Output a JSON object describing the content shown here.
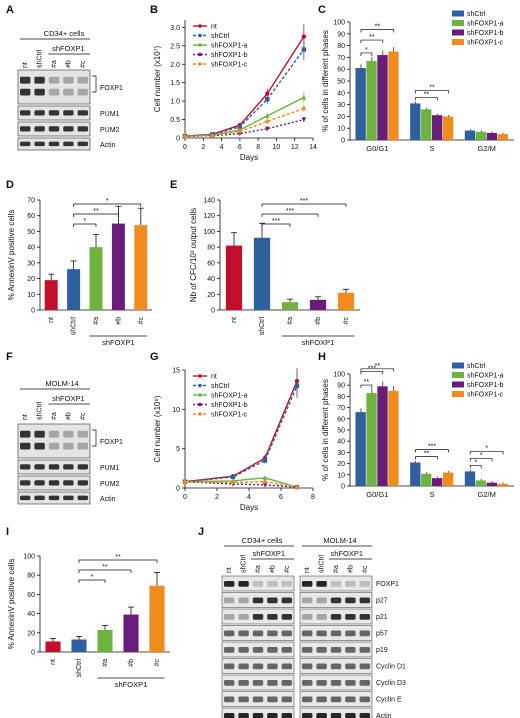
{
  "colors": {
    "nt": "#c0102c",
    "shCtrl": "#2e5f9e",
    "a": "#6db33f",
    "b": "#6b1c7a",
    "c": "#f08c1e"
  },
  "panel_labels": [
    "A",
    "B",
    "C",
    "D",
    "E",
    "F",
    "G",
    "H",
    "I",
    "J"
  ],
  "blots": {
    "A": {
      "header": "CD34+ cells",
      "group": "shFOXP1",
      "lanes": [
        "nt",
        "shCtrl",
        "#a",
        "#b",
        "#c"
      ],
      "rows": [
        "FOXP1",
        "PUM1",
        "PUM2",
        "Actin"
      ]
    },
    "F": {
      "header": "MOLM-14",
      "group": "shFOXP1",
      "lanes": [
        "nt",
        "shCtrl",
        "#a",
        "#b",
        "#c"
      ],
      "rows": [
        "FOXP1",
        "PUM1",
        "PUM2",
        "Actin"
      ]
    },
    "J": {
      "headers": [
        "CD34+ cells",
        "MOLM-14"
      ],
      "group": "shFOXP1",
      "lanes": [
        "nt",
        "shCtrl",
        "#a",
        "#b",
        "#c"
      ],
      "rows": [
        "FOXP1",
        "p27",
        "p21",
        "p57",
        "p19",
        "Cyclin D1",
        "Cyclin D3",
        "Cyclin E",
        "Actin"
      ]
    }
  },
  "chart_data": [
    {
      "panel": "B",
      "type": "line",
      "xlabel": "Days",
      "ylabel": "Cell number (x10⁷)",
      "x": [
        0,
        3,
        6,
        9,
        13
      ],
      "xlim": [
        0,
        14
      ],
      "ylim": [
        0,
        3.2
      ],
      "xticks": [
        0,
        2,
        4,
        6,
        8,
        10,
        12,
        14
      ],
      "yticks": [
        0,
        0.5,
        1,
        1.5,
        2,
        2.5,
        3
      ],
      "ytick_labels": [
        "0",
        "0.5",
        "1.0",
        "1.5",
        "2.0",
        "2.5",
        "3.0"
      ],
      "legend": "top-left",
      "series": [
        {
          "name": "nt",
          "values": [
            0.05,
            0.1,
            0.35,
            1.2,
            2.75
          ]
        },
        {
          "name": "shCtrl",
          "values": [
            0.05,
            0.1,
            0.3,
            1.05,
            2.4
          ]
        },
        {
          "name": "shFOXP1-a",
          "values": [
            0.05,
            0.08,
            0.22,
            0.6,
            1.1
          ]
        },
        {
          "name": "shFOXP1-b",
          "values": [
            0.05,
            0.06,
            0.12,
            0.25,
            0.5
          ]
        },
        {
          "name": "shFOXP1-c",
          "values": [
            0.05,
            0.07,
            0.18,
            0.45,
            0.8
          ]
        }
      ]
    },
    {
      "panel": "C",
      "type": "bar",
      "ylabel": "% of cells in different phases",
      "categories": [
        "G0/G1",
        "S",
        "G2/M"
      ],
      "ylim": [
        0,
        100
      ],
      "yticks": [
        0,
        10,
        20,
        30,
        40,
        50,
        60,
        70,
        80,
        90,
        100
      ],
      "legend": "top-right",
      "series": [
        {
          "name": "shCtrl",
          "values": [
            61,
            31,
            8
          ]
        },
        {
          "name": "shFOXP1-a",
          "values": [
            67,
            26,
            7
          ]
        },
        {
          "name": "shFOXP1-b",
          "values": [
            72,
            21,
            6
          ]
        },
        {
          "name": "shFOXP1-c",
          "values": [
            75,
            20,
            5
          ]
        }
      ],
      "significance": [
        "*",
        "**",
        "**",
        "**",
        "**"
      ]
    },
    {
      "panel": "D",
      "type": "bar",
      "ylabel": "% AnnexinV positive cells",
      "categories": [
        "nt",
        "shCtrl",
        "#a",
        "#b",
        "#c"
      ],
      "group_label": "shFOXP1",
      "values": [
        19,
        26,
        40,
        55,
        54
      ],
      "ylim": [
        0,
        70
      ],
      "yticks": [
        0,
        10,
        20,
        30,
        40,
        50,
        60,
        70
      ],
      "significance": [
        "*",
        "**",
        "*"
      ]
    },
    {
      "panel": "E",
      "type": "bar",
      "ylabel": "Nb of CFC/10³ output cells",
      "categories": [
        "nt",
        "shCtrl",
        "#a",
        "#b",
        "#c"
      ],
      "group_label": "shFOXP1",
      "values": [
        82,
        92,
        10,
        13,
        22
      ],
      "ylim": [
        0,
        140
      ],
      "yticks": [
        0,
        20,
        40,
        60,
        80,
        100,
        120,
        140
      ],
      "significance": [
        "***",
        "***",
        "***"
      ]
    },
    {
      "panel": "G",
      "type": "line",
      "xlabel": "Days",
      "ylabel": "Cell number (x10⁶)",
      "x": [
        0,
        3,
        5,
        7
      ],
      "xlim": [
        0,
        8
      ],
      "ylim": [
        0,
        15
      ],
      "xticks": [
        0,
        2,
        4,
        6,
        8
      ],
      "yticks": [
        0,
        5,
        10,
        15
      ],
      "legend": "top-left",
      "series": [
        {
          "name": "nt",
          "values": [
            0.8,
            1.5,
            3.8,
            13.6
          ]
        },
        {
          "name": "shCtrl",
          "values": [
            0.8,
            1.4,
            3.5,
            13.0
          ]
        },
        {
          "name": "shFOXP1-a",
          "values": [
            0.8,
            0.9,
            1.3,
            0.1
          ]
        },
        {
          "name": "shFOXP1-b",
          "values": [
            0.8,
            0.5,
            0.4,
            0.1
          ]
        },
        {
          "name": "shFOXP1-c",
          "values": [
            0.8,
            0.7,
            0.8,
            0.1
          ]
        }
      ]
    },
    {
      "panel": "H",
      "type": "bar",
      "ylabel": "% of cells in different phases",
      "categories": [
        "G0/G1",
        "S",
        "G2/M"
      ],
      "ylim": [
        0,
        100
      ],
      "yticks": [
        0,
        10,
        20,
        30,
        40,
        50,
        60,
        70,
        80,
        90,
        100
      ],
      "legend": "top-right",
      "series": [
        {
          "name": "shCtrl",
          "values": [
            66,
            21,
            13
          ]
        },
        {
          "name": "shFOXP1-a",
          "values": [
            83,
            11,
            5
          ]
        },
        {
          "name": "shFOXP1-b",
          "values": [
            89,
            7,
            3
          ]
        },
        {
          "name": "shFOXP1-c",
          "values": [
            85,
            12,
            2
          ]
        }
      ],
      "significance": [
        "**",
        "***",
        "**",
        "**",
        "***",
        "*",
        "*",
        "*",
        "**"
      ]
    },
    {
      "panel": "I",
      "type": "bar",
      "ylabel": "% AnnexinV positive cells",
      "categories": [
        "nt",
        "shCtrl",
        "#a",
        "#b",
        "#c"
      ],
      "group_label": "shFOXP1",
      "values": [
        11,
        13,
        23,
        39,
        69
      ],
      "ylim": [
        0,
        100
      ],
      "yticks": [
        0,
        20,
        40,
        60,
        80,
        100
      ],
      "significance": [
        "*",
        "**",
        "**"
      ]
    }
  ]
}
